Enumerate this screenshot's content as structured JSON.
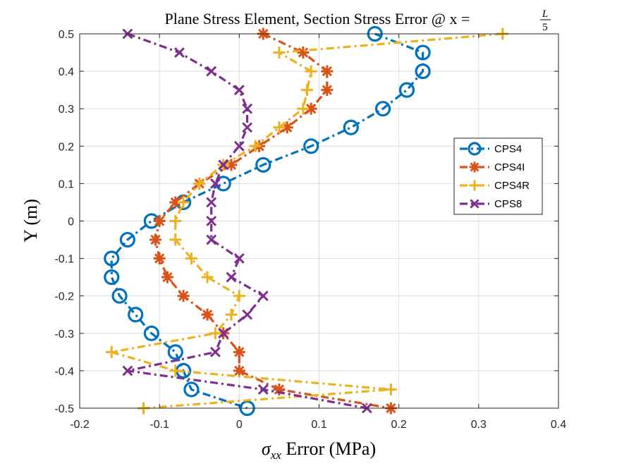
{
  "chart_data": {
    "type": "line",
    "title_text": "Plane Stress Element, Section Stress Error @ x = ",
    "title_fraction_num": "L",
    "title_fraction_den": "5",
    "xlabel_symbol": "σ",
    "xlabel_subscript": "xx",
    "xlabel_rest": " Error (MPa)",
    "ylabel": "Y (m)",
    "xlim": [
      -0.2,
      0.4
    ],
    "ylim": [
      -0.5,
      0.5
    ],
    "xticks": [
      "-0.2",
      "-0.1",
      "0",
      "0.1",
      "0.2",
      "0.3",
      "0.4"
    ],
    "yticks": [
      "-0.5",
      "-0.4",
      "-0.3",
      "-0.2",
      "-0.1",
      "0",
      "0.1",
      "0.2",
      "0.3",
      "0.4",
      "0.5"
    ],
    "grid": true,
    "legend_position": "right",
    "y": [
      0.5,
      0.45,
      0.4,
      0.35,
      0.3,
      0.25,
      0.2,
      0.15,
      0.1,
      0.05,
      0.0,
      -0.05,
      -0.1,
      -0.15,
      -0.2,
      -0.25,
      -0.3,
      -0.35,
      -0.4,
      -0.45,
      -0.5
    ],
    "series": [
      {
        "name": "CPS4",
        "color": "#0072BD",
        "marker": "circle",
        "x": [
          0.17,
          0.23,
          0.23,
          0.21,
          0.18,
          0.14,
          0.09,
          0.03,
          -0.02,
          -0.07,
          -0.11,
          -0.14,
          -0.16,
          -0.16,
          -0.15,
          -0.13,
          -0.11,
          -0.08,
          -0.07,
          -0.06,
          0.01
        ]
      },
      {
        "name": "CPS4I",
        "color": "#D95319",
        "marker": "asterisk",
        "x": [
          0.03,
          0.08,
          0.11,
          0.11,
          0.09,
          0.06,
          0.025,
          -0.01,
          -0.05,
          -0.08,
          -0.1,
          -0.105,
          -0.1,
          -0.09,
          -0.07,
          -0.04,
          -0.02,
          0.0,
          0.0,
          0.05,
          0.19
        ]
      },
      {
        "name": "CPS4R",
        "color": "#EDB120",
        "marker": "plus",
        "x": [
          0.33,
          0.05,
          0.09,
          0.085,
          0.08,
          0.05,
          0.02,
          -0.02,
          -0.05,
          -0.07,
          -0.08,
          -0.08,
          -0.06,
          -0.04,
          0.0,
          -0.01,
          -0.03,
          -0.16,
          -0.08,
          0.19,
          -0.12
        ]
      },
      {
        "name": "CPS8",
        "color": "#7E2F8E",
        "marker": "x",
        "x": [
          -0.14,
          -0.075,
          -0.035,
          0.0,
          0.01,
          0.01,
          0.0,
          -0.02,
          -0.03,
          -0.035,
          -0.035,
          -0.035,
          0.0,
          -0.01,
          0.03,
          0.01,
          -0.02,
          -0.03,
          -0.14,
          0.03,
          0.16
        ]
      }
    ]
  }
}
